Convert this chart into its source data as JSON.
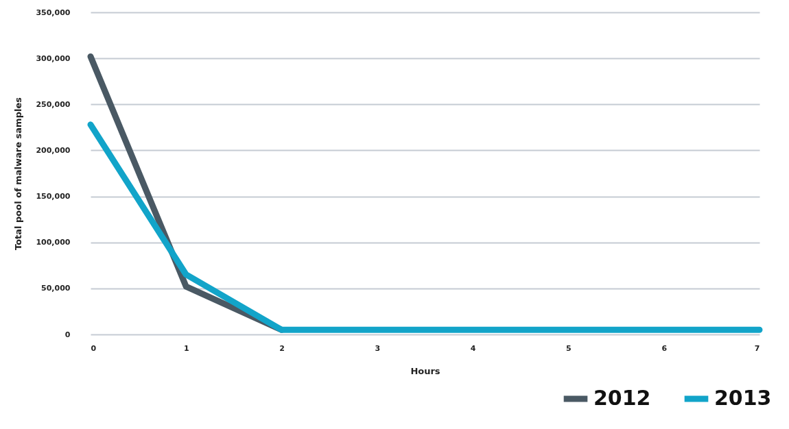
{
  "chart_data": {
    "type": "line",
    "xlabel": "Hours",
    "ylabel": "Total pool of malware samples",
    "x": [
      0,
      1,
      2,
      3,
      4,
      5,
      6,
      7
    ],
    "series": [
      {
        "name": "2012",
        "color": "#4a5964",
        "values": [
          302000,
          52000,
          5000,
          null,
          null,
          null,
          null,
          null
        ]
      },
      {
        "name": "2013",
        "color": "#12a4c9",
        "values": [
          228000,
          65000,
          5000,
          5000,
          5000,
          5000,
          5000,
          5000
        ]
      }
    ],
    "xlim": [
      0,
      7
    ],
    "xticks": [
      0,
      1,
      2,
      3,
      4,
      5,
      6,
      7
    ],
    "ylim": [
      0,
      350000
    ],
    "yticks": [
      0,
      {
        "value": 50000,
        "label": "50,000"
      },
      {
        "value": 100000,
        "label": "100,000"
      },
      {
        "value": 150000,
        "label": "150,000"
      },
      {
        "value": 200000,
        "label": "200,000"
      },
      {
        "value": 250000,
        "label": "250,000"
      },
      {
        "value": 300000,
        "label": "300,000"
      },
      {
        "value": 350000,
        "label": "350,000"
      }
    ],
    "grid": "y",
    "legend": "bottom right",
    "marker": "none",
    "line_style": "solid"
  }
}
